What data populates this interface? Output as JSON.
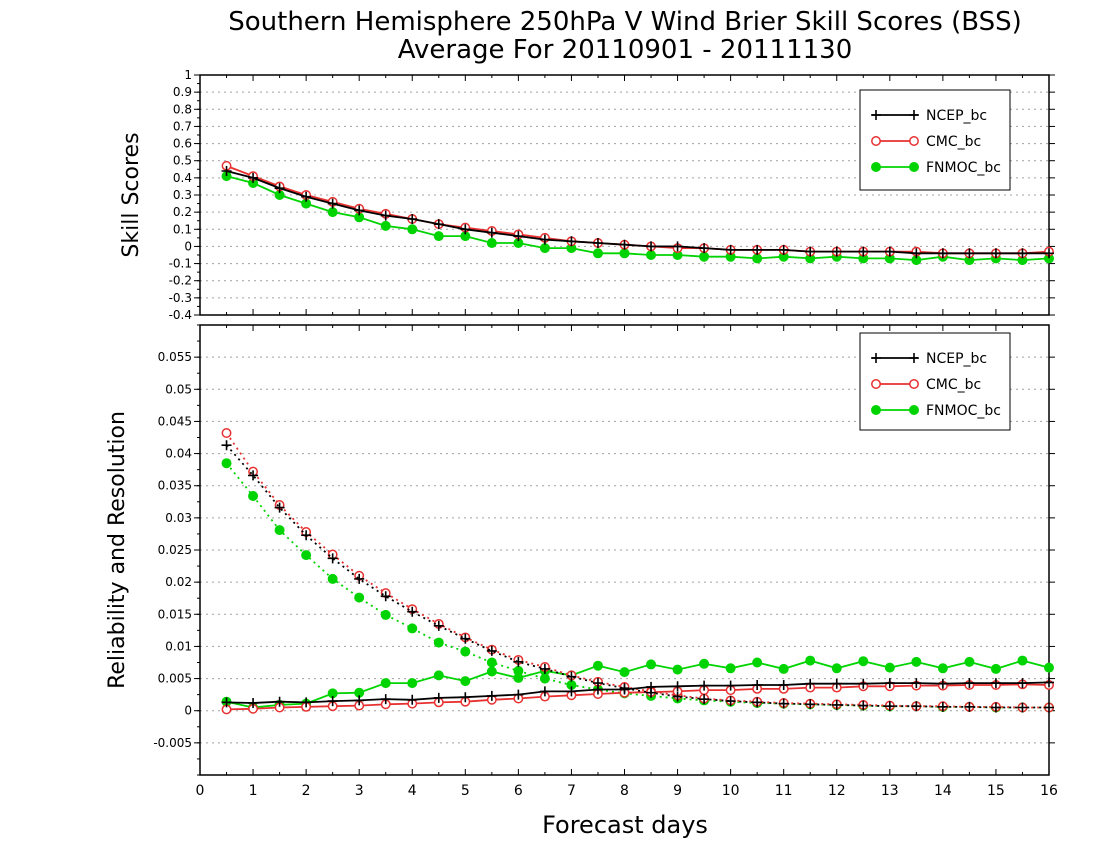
{
  "title_line1": "Southern Hemisphere 250hPa V Wind Brier Skill Scores (BSS)",
  "title_line2": "Average For 20110901 - 20111130",
  "xlabel": "Forecast days",
  "colors": {
    "NCEP_bc": "#000000",
    "CMC_bc": "#e83030",
    "FNMOC_bc": "#00d400",
    "grid": "#a0a0a0"
  },
  "chart_data": [
    {
      "type": "line",
      "ylabel": "Skill Scores",
      "xlim": [
        0,
        16
      ],
      "ylim": [
        -0.4,
        1
      ],
      "x_ticks": [
        "0",
        "1",
        "2",
        "3",
        "4",
        "5",
        "6",
        "7",
        "8",
        "9",
        "10",
        "11",
        "12",
        "13",
        "14",
        "15",
        "16"
      ],
      "y_ticks": [
        "-0.4",
        "-0.3",
        "-0.2",
        "-0.1",
        "0",
        "0.1",
        "0.2",
        "0.3",
        "0.4",
        "0.5",
        "0.6",
        "0.7",
        "0.8",
        "0.9",
        "1"
      ],
      "grid": true,
      "legend_position": "top-right",
      "x": [
        0.5,
        1,
        1.5,
        2,
        2.5,
        3,
        3.5,
        4,
        4.5,
        5,
        5.5,
        6,
        6.5,
        7,
        7.5,
        8,
        8.5,
        9,
        9.5,
        10,
        10.5,
        11,
        11.5,
        12,
        12.5,
        13,
        13.5,
        14,
        14.5,
        15,
        15.5,
        16
      ],
      "series": [
        {
          "name": "NCEP_bc",
          "style": "solid",
          "marker": "plus",
          "values": [
            0.44,
            0.4,
            0.34,
            0.29,
            0.25,
            0.21,
            0.18,
            0.16,
            0.13,
            0.1,
            0.08,
            0.06,
            0.04,
            0.03,
            0.02,
            0.01,
            0.0,
            0.0,
            -0.01,
            -0.02,
            -0.02,
            -0.02,
            -0.03,
            -0.03,
            -0.03,
            -0.03,
            -0.04,
            -0.04,
            -0.04,
            -0.04,
            -0.04,
            -0.04
          ]
        },
        {
          "name": "CMC_bc",
          "style": "solid",
          "marker": "open-circle",
          "values": [
            0.47,
            0.41,
            0.35,
            0.3,
            0.26,
            0.22,
            0.19,
            0.16,
            0.13,
            0.11,
            0.09,
            0.07,
            0.05,
            0.03,
            0.02,
            0.01,
            0.0,
            -0.01,
            -0.01,
            -0.02,
            -0.02,
            -0.02,
            -0.03,
            -0.03,
            -0.03,
            -0.03,
            -0.03,
            -0.04,
            -0.04,
            -0.04,
            -0.04,
            -0.03
          ]
        },
        {
          "name": "FNMOC_bc",
          "style": "solid",
          "marker": "filled-circle",
          "values": [
            0.41,
            0.37,
            0.3,
            0.25,
            0.2,
            0.17,
            0.12,
            0.1,
            0.06,
            0.06,
            0.02,
            0.02,
            -0.01,
            -0.01,
            -0.04,
            -0.04,
            -0.05,
            -0.05,
            -0.06,
            -0.06,
            -0.07,
            -0.06,
            -0.07,
            -0.06,
            -0.07,
            -0.07,
            -0.08,
            -0.06,
            -0.08,
            -0.07,
            -0.08,
            -0.07
          ]
        }
      ]
    },
    {
      "type": "line",
      "ylabel": "Reliability and Resolution",
      "xlim": [
        0,
        16
      ],
      "ylim": [
        -0.01,
        0.06
      ],
      "x_ticks": [
        "0",
        "1",
        "2",
        "3",
        "4",
        "5",
        "6",
        "7",
        "8",
        "9",
        "10",
        "11",
        "12",
        "13",
        "14",
        "15",
        "16"
      ],
      "y_ticks": [
        "-0.005",
        "0",
        "0.005",
        "0.01",
        "0.015",
        "0.02",
        "0.025",
        "0.03",
        "0.035",
        "0.04",
        "0.045",
        "0.05",
        "0.055"
      ],
      "grid": true,
      "legend_position": "top-right",
      "x": [
        0.5,
        1,
        1.5,
        2,
        2.5,
        3,
        3.5,
        4,
        4.5,
        5,
        5.5,
        6,
        6.5,
        7,
        7.5,
        8,
        8.5,
        9,
        9.5,
        10,
        10.5,
        11,
        11.5,
        12,
        12.5,
        13,
        13.5,
        14,
        14.5,
        15,
        15.5,
        16
      ],
      "series": [
        {
          "name": "NCEP_bc",
          "metric": "reliability",
          "style": "dotted",
          "marker": "plus",
          "values": [
            0.0413,
            0.0366,
            0.0316,
            0.0273,
            0.0237,
            0.0205,
            0.0178,
            0.0154,
            0.0132,
            0.0112,
            0.0093,
            0.0076,
            0.0065,
            0.0053,
            0.0043,
            0.0035,
            0.0028,
            0.0022,
            0.0018,
            0.0015,
            0.0013,
            0.0011,
            0.001,
            0.0009,
            0.0008,
            0.0007,
            0.0007,
            0.0006,
            0.0006,
            0.0005,
            0.0005,
            0.0005
          ]
        },
        {
          "name": "CMC_bc",
          "metric": "reliability",
          "style": "dotted",
          "marker": "open-circle",
          "values": [
            0.0432,
            0.0372,
            0.032,
            0.0278,
            0.0243,
            0.021,
            0.0183,
            0.0158,
            0.0135,
            0.0114,
            0.0095,
            0.0079,
            0.0068,
            0.0055,
            0.0045,
            0.0037,
            0.003,
            0.0024,
            0.0019,
            0.0016,
            0.0014,
            0.0012,
            0.0011,
            0.001,
            0.0009,
            0.0008,
            0.0007,
            0.0007,
            0.0006,
            0.0006,
            0.0005,
            0.0005
          ]
        },
        {
          "name": "FNMOC_bc",
          "metric": "reliability",
          "style": "dotted",
          "marker": "filled-circle",
          "values": [
            0.0385,
            0.0334,
            0.0281,
            0.0242,
            0.0205,
            0.0176,
            0.0149,
            0.0128,
            0.0106,
            0.0092,
            0.0075,
            0.0062,
            0.005,
            0.004,
            0.0033,
            0.0027,
            0.0023,
            0.0019,
            0.0016,
            0.0014,
            0.0012,
            0.0011,
            0.001,
            0.0009,
            0.0008,
            0.0007,
            0.0007,
            0.0006,
            0.0006,
            0.0005,
            0.0005,
            0.0005
          ]
        },
        {
          "name": "NCEP_bc",
          "metric": "resolution",
          "style": "solid",
          "marker": "plus",
          "values": [
            0.0013,
            0.0012,
            0.0014,
            0.0013,
            0.0015,
            0.0016,
            0.0018,
            0.0017,
            0.002,
            0.0021,
            0.0023,
            0.0025,
            0.003,
            0.003,
            0.0033,
            0.0033,
            0.0037,
            0.0038,
            0.0039,
            0.0039,
            0.004,
            0.004,
            0.0042,
            0.0042,
            0.0042,
            0.0043,
            0.0043,
            0.0042,
            0.0043,
            0.0043,
            0.0043,
            0.0044
          ]
        },
        {
          "name": "CMC_bc",
          "metric": "resolution",
          "style": "solid",
          "marker": "open-circle",
          "values": [
            0.0002,
            0.0003,
            0.0005,
            0.0006,
            0.0007,
            0.0008,
            0.001,
            0.0011,
            0.0013,
            0.0014,
            0.0017,
            0.0019,
            0.0022,
            0.0024,
            0.0026,
            0.0028,
            0.0029,
            0.003,
            0.0032,
            0.0032,
            0.0034,
            0.0034,
            0.0036,
            0.0036,
            0.0038,
            0.0038,
            0.0039,
            0.0039,
            0.004,
            0.004,
            0.0041,
            0.004
          ]
        },
        {
          "name": "FNMOC_bc",
          "metric": "resolution",
          "style": "solid",
          "marker": "filled-circle",
          "values": [
            0.0014,
            0.0005,
            0.0009,
            0.0011,
            0.0027,
            0.0028,
            0.0043,
            0.0043,
            0.0055,
            0.0046,
            0.0061,
            0.0051,
            0.0062,
            0.0055,
            0.007,
            0.006,
            0.0072,
            0.0064,
            0.0073,
            0.0066,
            0.0075,
            0.0065,
            0.0078,
            0.0066,
            0.0077,
            0.0067,
            0.0076,
            0.0066,
            0.0076,
            0.0065,
            0.0078,
            0.0067
          ]
        }
      ]
    }
  ]
}
